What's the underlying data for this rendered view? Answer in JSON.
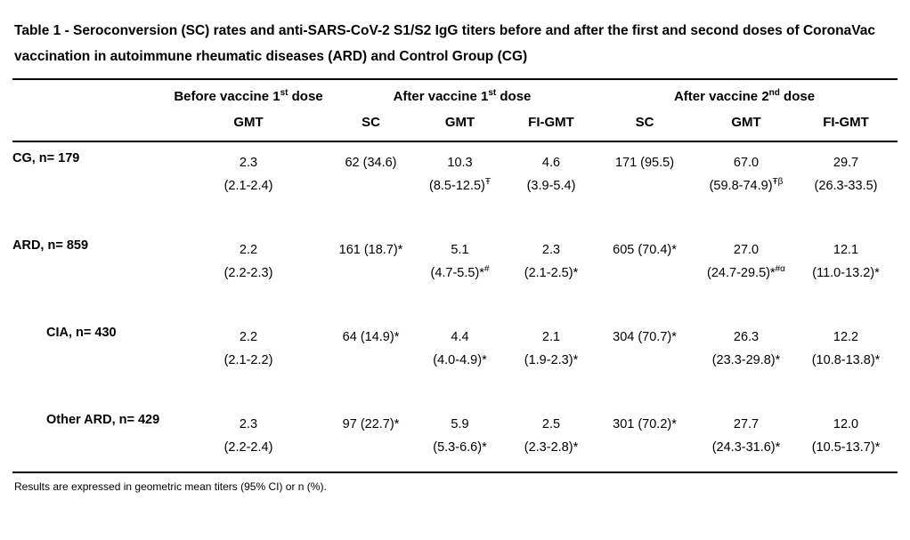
{
  "title": "Table 1 - Seroconversion (SC) rates and anti-SARS-CoV-2 S1/S2 IgG titers before and after the first and second doses of CoronaVac vaccination in autoimmune rheumatic diseases (ARD) and Control Group (CG)",
  "table": {
    "groups": [
      {
        "pre": "Before vaccine 1",
        "sup": "st",
        "post": " dose"
      },
      {
        "pre": "After vaccine 1",
        "sup": "st",
        "post": " dose"
      },
      {
        "pre": "After vaccine 2",
        "sup": "nd",
        "post": " dose"
      }
    ],
    "col_headers": [
      "GMT",
      "SC",
      "GMT",
      "FI-GMT",
      "SC",
      "GMT",
      "FI-GMT"
    ],
    "rows": [
      {
        "label": "CG, n= 179",
        "indent": false,
        "cells": [
          {
            "l1": "2.3",
            "l2": "(2.1-2.4)"
          },
          {
            "l1": "62 (34.6)"
          },
          {
            "l1": "10.3",
            "l2": "(8.5-12.5)",
            "l2sup": "Ŧ"
          },
          {
            "l1": "4.6",
            "l2": "(3.9-5.4)"
          },
          {
            "l1": "171 (95.5)"
          },
          {
            "l1": "67.0",
            "l2": "(59.8-74.9)",
            "l2sup": "Ŧβ"
          },
          {
            "l1": "29.7",
            "l2": "(26.3-33.5)"
          }
        ]
      },
      {
        "label": "ARD, n= 859",
        "indent": false,
        "cells": [
          {
            "l1": "2.2",
            "l2": "(2.2-2.3)"
          },
          {
            "l1": "161 (18.7)*"
          },
          {
            "l1": "5.1",
            "l2": "(4.7-5.5)*",
            "l2sup": "#"
          },
          {
            "l1": "2.3",
            "l2": "(2.1-2.5)*"
          },
          {
            "l1": "605 (70.4)*"
          },
          {
            "l1": "27.0",
            "l2": "(24.7-29.5)*",
            "l2sup": "#α"
          },
          {
            "l1": "12.1",
            "l2": "(11.0-13.2)*"
          }
        ]
      },
      {
        "label": "CIA, n= 430",
        "indent": true,
        "cells": [
          {
            "l1": "2.2",
            "l2": "(2.1-2.2)"
          },
          {
            "l1": "64 (14.9)*"
          },
          {
            "l1": "4.4",
            "l2": "(4.0-4.9)*"
          },
          {
            "l1": "2.1",
            "l2": "(1.9-2.3)*"
          },
          {
            "l1": "304 (70.7)*"
          },
          {
            "l1": "26.3",
            "l2": "(23.3-29.8)*"
          },
          {
            "l1": "12.2",
            "l2": "(10.8-13.8)*"
          }
        ]
      },
      {
        "label": "Other ARD, n= 429",
        "indent": true,
        "cells": [
          {
            "l1": "2.3",
            "l2": "(2.2-2.4)"
          },
          {
            "l1": "97 (22.7)*"
          },
          {
            "l1": "5.9",
            "l2": "(5.3-6.6)*"
          },
          {
            "l1": "2.5",
            "l2": "(2.3-2.8)*"
          },
          {
            "l1": "301 (70.2)*"
          },
          {
            "l1": "27.7",
            "l2": "(24.3-31.6)*"
          },
          {
            "l1": "12.0",
            "l2": "(10.5-13.7)*"
          }
        ]
      }
    ]
  },
  "footnote": "Results are expressed in geometric mean titers (95% CI) or n (%)."
}
